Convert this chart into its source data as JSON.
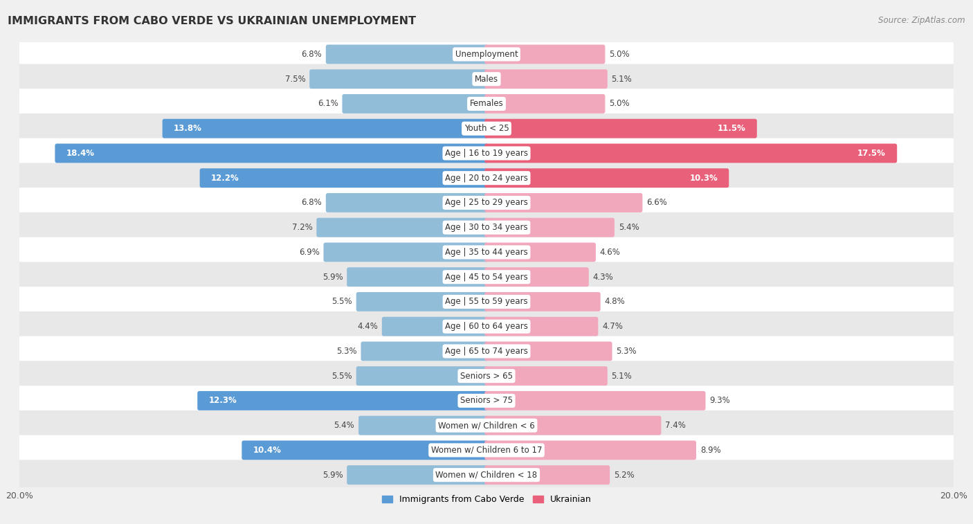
{
  "title": "IMMIGRANTS FROM CABO VERDE VS UKRAINIAN UNEMPLOYMENT",
  "source": "Source: ZipAtlas.com",
  "categories": [
    "Unemployment",
    "Males",
    "Females",
    "Youth < 25",
    "Age | 16 to 19 years",
    "Age | 20 to 24 years",
    "Age | 25 to 29 years",
    "Age | 30 to 34 years",
    "Age | 35 to 44 years",
    "Age | 45 to 54 years",
    "Age | 55 to 59 years",
    "Age | 60 to 64 years",
    "Age | 65 to 74 years",
    "Seniors > 65",
    "Seniors > 75",
    "Women w/ Children < 6",
    "Women w/ Children 6 to 17",
    "Women w/ Children < 18"
  ],
  "cabo_verde": [
    6.8,
    7.5,
    6.1,
    13.8,
    18.4,
    12.2,
    6.8,
    7.2,
    6.9,
    5.9,
    5.5,
    4.4,
    5.3,
    5.5,
    12.3,
    5.4,
    10.4,
    5.9
  ],
  "ukrainian": [
    5.0,
    5.1,
    5.0,
    11.5,
    17.5,
    10.3,
    6.6,
    5.4,
    4.6,
    4.3,
    4.8,
    4.7,
    5.3,
    5.1,
    9.3,
    7.4,
    8.9,
    5.2
  ],
  "cabo_verde_color_normal": "#92bdd9",
  "cabo_verde_color_highlight": "#5b9bd5",
  "ukrainian_color_normal": "#f2a8bc",
  "ukrainian_color_highlight": "#e8607a",
  "background_color": "#f0f0f0",
  "row_light": "#ffffff",
  "row_dark": "#e8e8e8",
  "xlim": 20.0,
  "bar_height": 0.62,
  "highlight_threshold": 10.0,
  "legend_cabo_color": "#5b9bd5",
  "legend_ukr_color": "#e8607a",
  "label_inside_threshold": 10.0
}
